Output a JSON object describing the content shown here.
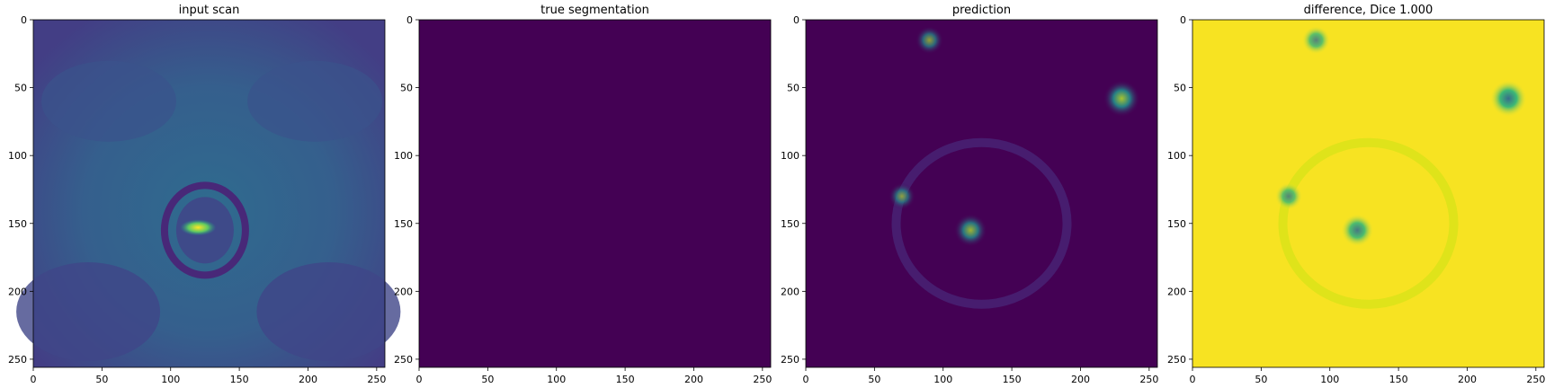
{
  "chart_data": [
    {
      "type": "heatmap",
      "title": "input scan",
      "xlabel": "",
      "ylabel": "",
      "xlim": [
        0,
        256
      ],
      "ylim": [
        256,
        0
      ],
      "xticks": [
        0,
        50,
        100,
        150,
        200,
        250
      ],
      "yticks": [
        0,
        50,
        100,
        150,
        200,
        250
      ],
      "colormap": "viridis",
      "description_values": {
        "background_level": 0.25,
        "bright_spot": {
          "x": 120,
          "y": 153,
          "value": 1.0
        }
      }
    },
    {
      "type": "heatmap",
      "title": "true segmentation",
      "xlabel": "",
      "ylabel": "",
      "xlim": [
        0,
        256
      ],
      "ylim": [
        256,
        0
      ],
      "xticks": [
        0,
        50,
        100,
        150,
        200,
        250
      ],
      "yticks": [
        0,
        50,
        100,
        150,
        200,
        250
      ],
      "colormap": "viridis",
      "uniform_value": 0.0
    },
    {
      "type": "heatmap",
      "title": "prediction",
      "xlabel": "",
      "ylabel": "",
      "xlim": [
        0,
        256
      ],
      "ylim": [
        256,
        0
      ],
      "xticks": [
        0,
        50,
        100,
        150,
        200,
        250
      ],
      "yticks": [
        0,
        50,
        100,
        150,
        200,
        250
      ],
      "colormap": "viridis",
      "hot_spots": [
        {
          "x": 230,
          "y": 58,
          "value": 0.75
        },
        {
          "x": 120,
          "y": 155,
          "value": 0.6
        },
        {
          "x": 90,
          "y": 15,
          "value": 0.4
        },
        {
          "x": 70,
          "y": 130,
          "value": 0.35
        }
      ]
    },
    {
      "type": "heatmap",
      "title": "difference, Dice 1.000",
      "xlabel": "",
      "ylabel": "",
      "xlim": [
        0,
        256
      ],
      "ylim": [
        256,
        0
      ],
      "xticks": [
        0,
        50,
        100,
        150,
        200,
        250
      ],
      "yticks": [
        0,
        50,
        100,
        150,
        200,
        250
      ],
      "colormap": "viridis",
      "cold_spots": [
        {
          "x": 230,
          "y": 58,
          "value": 0.1
        },
        {
          "x": 120,
          "y": 155,
          "value": 0.3
        },
        {
          "x": 90,
          "y": 15,
          "value": 0.5
        },
        {
          "x": 70,
          "y": 130,
          "value": 0.55
        }
      ]
    }
  ]
}
